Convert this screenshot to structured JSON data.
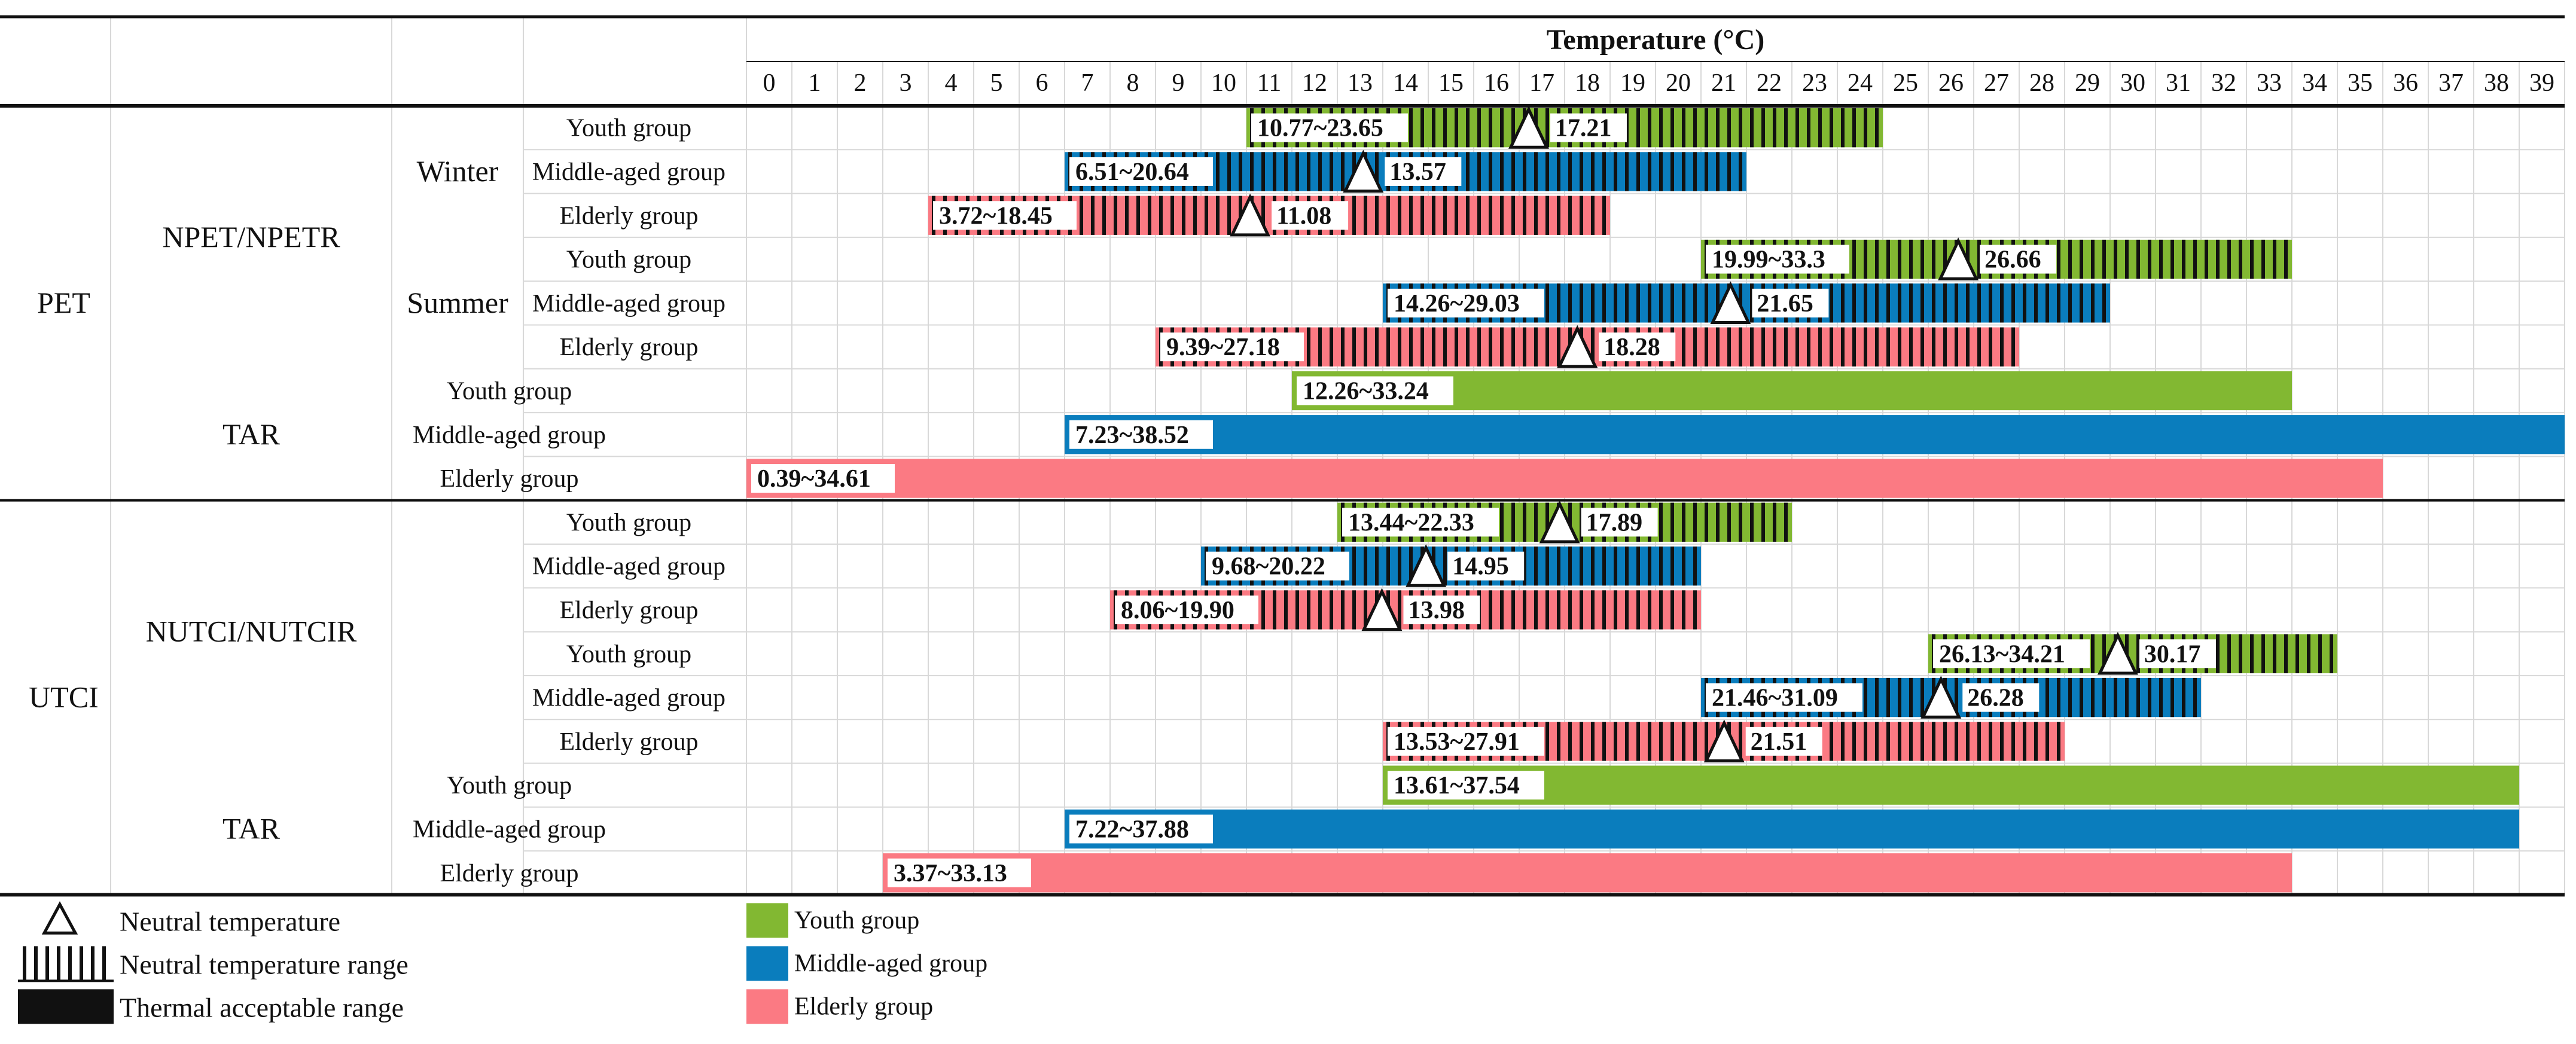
{
  "chart_data": {
    "type": "range-bar",
    "title": "Temperature (°C)",
    "x_ticks": [
      0,
      1,
      2,
      3,
      4,
      5,
      6,
      7,
      8,
      9,
      10,
      11,
      12,
      13,
      14,
      15,
      16,
      17,
      18,
      19,
      20,
      21,
      22,
      23,
      24,
      25,
      26,
      27,
      28,
      29,
      30,
      31,
      32,
      33,
      34,
      35,
      36,
      37,
      38,
      39
    ],
    "x_range": [
      0,
      40
    ],
    "groups": [
      {
        "index": "PET",
        "subgroups": [
          {
            "name": "NPET/NPETR",
            "seasons": [
              {
                "season": "Winter",
                "rows": [
                  {
                    "label": "Youth group",
                    "color": "youth",
                    "hatched": true,
                    "start": 10.77,
                    "end": 23.65,
                    "neutral": 17.21,
                    "range_text": "10.77~23.65",
                    "neutral_text": "17.21",
                    "bar_start": 11,
                    "bar_end": 25
                  },
                  {
                    "label": "Middle-aged group",
                    "color": "middle",
                    "hatched": true,
                    "start": 6.51,
                    "end": 20.64,
                    "neutral": 13.57,
                    "range_text": "6.51~20.64",
                    "neutral_text": "13.57",
                    "bar_start": 7,
                    "bar_end": 22
                  },
                  {
                    "label": "Elderly group",
                    "color": "elderly",
                    "hatched": true,
                    "start": 3.72,
                    "end": 18.45,
                    "neutral": 11.08,
                    "range_text": "3.72~18.45",
                    "neutral_text": "11.08",
                    "bar_start": 4,
                    "bar_end": 19
                  }
                ]
              },
              {
                "season": "Summer",
                "rows": [
                  {
                    "label": "Youth group",
                    "color": "youth",
                    "hatched": true,
                    "start": 19.99,
                    "end": 33.3,
                    "neutral": 26.66,
                    "range_text": "19.99~33.3",
                    "neutral_text": "26.66",
                    "bar_start": 21,
                    "bar_end": 34
                  },
                  {
                    "label": "Middle-aged group",
                    "color": "middle",
                    "hatched": true,
                    "start": 14.26,
                    "end": 29.03,
                    "neutral": 21.65,
                    "range_text": "14.26~29.03",
                    "neutral_text": "21.65",
                    "bar_start": 14,
                    "bar_end": 30
                  },
                  {
                    "label": "Elderly group",
                    "color": "elderly",
                    "hatched": true,
                    "start": 9.39,
                    "end": 27.18,
                    "neutral": 18.28,
                    "range_text": "9.39~27.18",
                    "neutral_text": "18.28",
                    "bar_start": 9,
                    "bar_end": 28
                  }
                ]
              }
            ]
          },
          {
            "name": "TAR",
            "rows": [
              {
                "label": "Youth group",
                "color": "youth",
                "hatched": false,
                "start": 12.26,
                "end": 33.24,
                "range_text": "12.26~33.24",
                "bar_start": 12,
                "bar_end": 34
              },
              {
                "label": "Middle-aged group",
                "color": "middle",
                "hatched": false,
                "start": 7.23,
                "end": 38.52,
                "range_text": "7.23~38.52",
                "bar_start": 7,
                "bar_end": 40
              },
              {
                "label": "Elderly group",
                "color": "elderly",
                "hatched": false,
                "start": 0.39,
                "end": 34.61,
                "range_text": "0.39~34.61",
                "bar_start": 0,
                "bar_end": 36
              }
            ]
          }
        ]
      },
      {
        "index": "UTCI",
        "subgroups": [
          {
            "name": "NUTCI/NUTCIR",
            "seasons": [
              {
                "season": "",
                "rows": [
                  {
                    "label": "Youth group",
                    "color": "youth",
                    "hatched": true,
                    "start": 13.44,
                    "end": 22.33,
                    "neutral": 17.89,
                    "range_text": "13.44~22.33",
                    "neutral_text": "17.89",
                    "bar_start": 13,
                    "bar_end": 23
                  },
                  {
                    "label": "Middle-aged group",
                    "color": "middle",
                    "hatched": true,
                    "start": 9.68,
                    "end": 20.22,
                    "neutral": 14.95,
                    "range_text": "9.68~20.22",
                    "neutral_text": "14.95",
                    "bar_start": 10,
                    "bar_end": 21
                  },
                  {
                    "label": "Elderly group",
                    "color": "elderly",
                    "hatched": true,
                    "start": 8.06,
                    "end": 19.9,
                    "neutral": 13.98,
                    "range_text": "8.06~19.90",
                    "neutral_text": "13.98",
                    "bar_start": 8,
                    "bar_end": 21
                  }
                ]
              },
              {
                "season": "",
                "rows": [
                  {
                    "label": "Youth group",
                    "color": "youth",
                    "hatched": true,
                    "start": 26.13,
                    "end": 34.21,
                    "neutral": 30.17,
                    "range_text": "26.13~34.21",
                    "neutral_text": "30.17",
                    "bar_start": 26,
                    "bar_end": 35
                  },
                  {
                    "label": "Middle-aged group",
                    "color": "middle",
                    "hatched": true,
                    "start": 21.46,
                    "end": 31.09,
                    "neutral": 26.28,
                    "range_text": "21.46~31.09",
                    "neutral_text": "26.28",
                    "bar_start": 21,
                    "bar_end": 32
                  },
                  {
                    "label": "Elderly group",
                    "color": "elderly",
                    "hatched": true,
                    "start": 13.53,
                    "end": 27.91,
                    "neutral": 21.51,
                    "range_text": "13.53~27.91",
                    "neutral_text": "21.51",
                    "bar_start": 14,
                    "bar_end": 29
                  }
                ]
              }
            ]
          },
          {
            "name": "TAR",
            "rows": [
              {
                "label": "Youth group",
                "color": "youth",
                "hatched": false,
                "start": 13.61,
                "end": 37.54,
                "range_text": "13.61~37.54",
                "bar_start": 14,
                "bar_end": 39
              },
              {
                "label": "Middle-aged group",
                "color": "middle",
                "hatched": false,
                "start": 7.22,
                "end": 37.88,
                "range_text": "7.22~37.88",
                "bar_start": 7,
                "bar_end": 39
              },
              {
                "label": "Elderly group",
                "color": "elderly",
                "hatched": false,
                "start": 3.37,
                "end": 33.13,
                "range_text": "3.37~33.13",
                "bar_start": 3,
                "bar_end": 34
              }
            ]
          }
        ]
      }
    ],
    "legend": {
      "markers": [
        {
          "key": "neutral",
          "label": "Neutral temperature"
        },
        {
          "key": "hatch",
          "label": "Neutral temperature range"
        },
        {
          "key": "solid",
          "label": "Thermal acceptable range"
        }
      ],
      "colors": [
        {
          "key": "youth",
          "label": "Youth group"
        },
        {
          "key": "middle",
          "label": "Middle-aged group"
        },
        {
          "key": "elderly",
          "label": "Elderly group"
        }
      ]
    },
    "colors": {
      "youth": "#82b832",
      "middle": "#0a7dbd",
      "elderly": "#fb7a83",
      "grid": "#d8d8d8",
      "text": "#111111"
    }
  }
}
